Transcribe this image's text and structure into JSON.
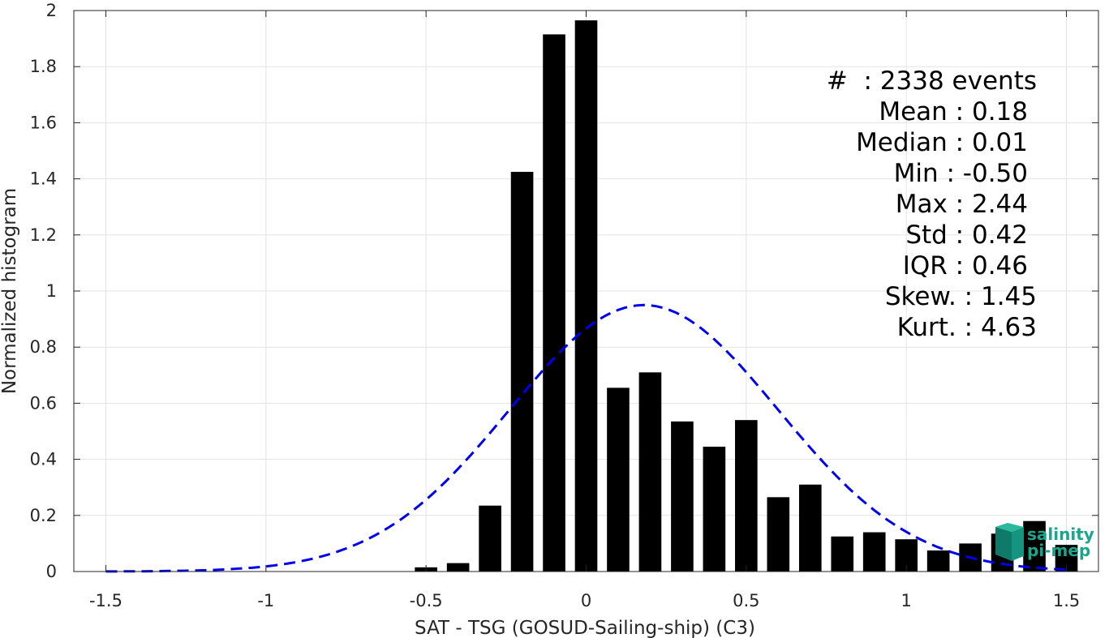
{
  "chart_data": {
    "type": "bar",
    "xlabel": "SAT - TSG (GOSUD-Sailing-ship) (C3)",
    "ylabel": "Normalized histogram",
    "xlim": [
      -1.6,
      1.6
    ],
    "ylim": [
      0,
      2
    ],
    "xticks": [
      -1.5,
      -1,
      -0.5,
      0,
      0.5,
      1,
      1.5
    ],
    "xtick_labels": [
      "-1.5",
      "-1",
      "-0.5",
      "0",
      "0.5",
      "1",
      "1.5"
    ],
    "yticks": [
      0,
      0.2,
      0.4,
      0.6,
      0.8,
      1,
      1.2,
      1.4,
      1.6,
      1.8,
      2
    ],
    "ytick_labels": [
      "0",
      "0.2",
      "0.4",
      "0.6",
      "0.8",
      "1",
      "1.2",
      "1.4",
      "1.6",
      "1.8",
      "2"
    ],
    "grid": true,
    "bar_color": "#000000",
    "bar_width": 0.07,
    "bars": {
      "x": [
        -0.5,
        -0.4,
        -0.3,
        -0.2,
        -0.1,
        0.0,
        0.1,
        0.2,
        0.3,
        0.4,
        0.5,
        0.6,
        0.7,
        0.8,
        0.9,
        1.0,
        1.1,
        1.2,
        1.3,
        1.4,
        1.5
      ],
      "values": [
        0.015,
        0.03,
        0.235,
        1.425,
        1.915,
        1.965,
        0.655,
        0.71,
        0.535,
        0.445,
        0.54,
        0.265,
        0.31,
        0.125,
        0.14,
        0.115,
        0.075,
        0.1,
        0.135,
        0.18,
        0.095
      ]
    },
    "fit_curve": {
      "style": "dashed",
      "color": "#0000ee",
      "mean": 0.18,
      "std": 0.42,
      "x_range": [
        -1.5,
        1.5
      ]
    },
    "stats": [
      "#  : 2338 events",
      "Mean : 0.18",
      "Median : 0.01",
      "Min : -0.50",
      "Max : 2.44",
      "Std : 0.42",
      "IQR : 0.46",
      "Skew. : 1.45",
      "Kurt. : 4.63"
    ]
  },
  "logo": {
    "line1": "salinity",
    "line2": "pi-mep",
    "color": "#1aa58c"
  }
}
